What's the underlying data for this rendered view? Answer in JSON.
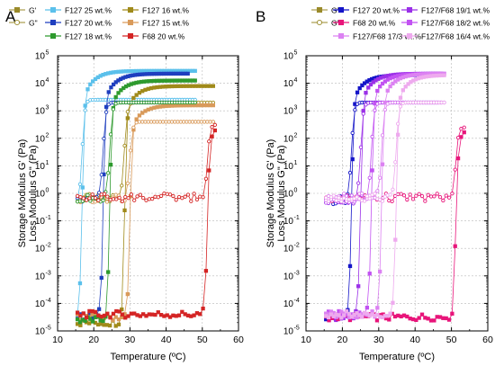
{
  "chart_data": [
    {
      "type": "scatter",
      "panel_label": "A",
      "xlabel": "Temperature (ºC)",
      "ylabel_lines": [
        "Storage Modulus G' (Pa)",
        "Loss Modulus G\" (Pa)"
      ],
      "xlim": [
        10,
        60
      ],
      "ylim_log10": [
        -5,
        5
      ],
      "xticks": [
        "10",
        "20",
        "30",
        "40",
        "50",
        "60"
      ],
      "ytick_exponents": [
        -5,
        -4,
        -3,
        -2,
        -1,
        0,
        1,
        2,
        3,
        4,
        5
      ],
      "ytick_base": "10",
      "legend_header": [
        {
          "label": "G'",
          "style": "filled"
        },
        {
          "label": "G\"",
          "style": "open"
        }
      ],
      "legend": [
        {
          "label": "F127 25 wt.%",
          "color": "#5bc0eb"
        },
        {
          "label": "F127 16 wt.%",
          "color": "#a08a1a"
        },
        {
          "label": "F127 20 wt.%",
          "color": "#1f3fbf"
        },
        {
          "label": "F127 15 wt.%",
          "color": "#d99a5a"
        },
        {
          "label": "F127 18 wt.%",
          "color": "#2e9a2e"
        },
        {
          "label": "F68  20 wt.%",
          "color": "#d42424"
        }
      ],
      "series": [
        {
          "color": "#5bc0eb",
          "x0": 15.5,
          "t": 16.8,
          "x1": 48,
          "g_low": -4.4,
          "g_high": 4.45,
          "gp_low": -0.3,
          "gp_high": 3.4
        },
        {
          "color": "#a08a1a",
          "x0": 15.5,
          "t": 28.5,
          "x1": 53,
          "g_low": -4.7,
          "g_high": 3.9,
          "gp_low": -0.15,
          "gp_high": 3.3
        },
        {
          "color": "#1f3fbf",
          "x0": 15.5,
          "t": 22.6,
          "x1": 46,
          "g_low": -4.5,
          "g_high": 4.35,
          "gp_low": -0.25,
          "gp_high": 3.3
        },
        {
          "color": "#d99a5a",
          "x0": 15.5,
          "t": 30.0,
          "x1": 53,
          "g_low": -4.5,
          "g_high": 3.2,
          "gp_low": -0.2,
          "gp_high": 2.6
        },
        {
          "color": "#2e9a2e",
          "x0": 15.5,
          "t": 24.4,
          "x1": 48,
          "g_low": -4.6,
          "g_high": 4.1,
          "gp_low": -0.2,
          "gp_high": 3.3
        },
        {
          "color": "#d42424",
          "x0": 15.5,
          "t": 51.4,
          "x1": 53.5,
          "g_low": -4.4,
          "g_high": 2.7,
          "gp_low": -0.15,
          "gp_high": 2.5
        }
      ]
    },
    {
      "type": "scatter",
      "panel_label": "B",
      "xlabel": "Temperature (ºC)",
      "ylabel_lines": [
        "Storage Modulus G' (Pa)",
        "Loss Modulus G\" (Pa)"
      ],
      "xlim": [
        10,
        60
      ],
      "ylim_log10": [
        -5,
        5
      ],
      "xticks": [
        "10",
        "20",
        "30",
        "40",
        "50",
        "60"
      ],
      "ytick_exponents": [
        -5,
        -4,
        -3,
        -2,
        -1,
        0,
        1,
        2,
        3,
        4,
        5
      ],
      "ytick_base": "10",
      "legend_header": [
        {
          "label": "G'",
          "style": "filled"
        },
        {
          "label": "G\"",
          "style": "open"
        }
      ],
      "legend": [
        {
          "label": "F127 20 wt.%",
          "color": "#1414c8"
        },
        {
          "label": "F127/F68 19/1 wt.%",
          "color": "#9b30e8"
        },
        {
          "label": "F68  20 wt.%",
          "color": "#e8157a"
        },
        {
          "label": "F127/F68 18/2 wt.%",
          "color": "#c252f2"
        },
        {
          "label": "F127/F68 17/3 wt.%",
          "color": "#dc82f2"
        },
        {
          "label": "F127/F68 16/4 wt.%",
          "color": "#eeaaee"
        }
      ],
      "series": [
        {
          "color": "#1414c8",
          "x0": 15.5,
          "t": 22.5,
          "x1": 46,
          "g_low": -4.5,
          "g_high": 4.3,
          "gp_low": -0.25,
          "gp_high": 3.3
        },
        {
          "color": "#9b30e8",
          "x0": 15.5,
          "t": 25.0,
          "x1": 47,
          "g_low": -4.5,
          "g_high": 4.35,
          "gp_low": -0.25,
          "gp_high": 3.3
        },
        {
          "color": "#e8157a",
          "x0": 15.5,
          "t": 51.2,
          "x1": 53.5,
          "g_low": -4.5,
          "g_high": 2.6,
          "gp_low": -0.15,
          "gp_high": 2.4
        },
        {
          "color": "#c252f2",
          "x0": 15.5,
          "t": 28.0,
          "x1": 48,
          "g_low": -4.4,
          "g_high": 4.35,
          "gp_low": -0.2,
          "gp_high": 3.3
        },
        {
          "color": "#dc82f2",
          "x0": 15.5,
          "t": 30.8,
          "x1": 48,
          "g_low": -4.4,
          "g_high": 4.35,
          "gp_low": -0.15,
          "gp_high": 3.3
        },
        {
          "color": "#eeaaee",
          "x0": 15.5,
          "t": 34.8,
          "x1": 48,
          "g_low": -4.4,
          "g_high": 4.3,
          "gp_low": -0.15,
          "gp_high": 3.3
        }
      ]
    }
  ]
}
